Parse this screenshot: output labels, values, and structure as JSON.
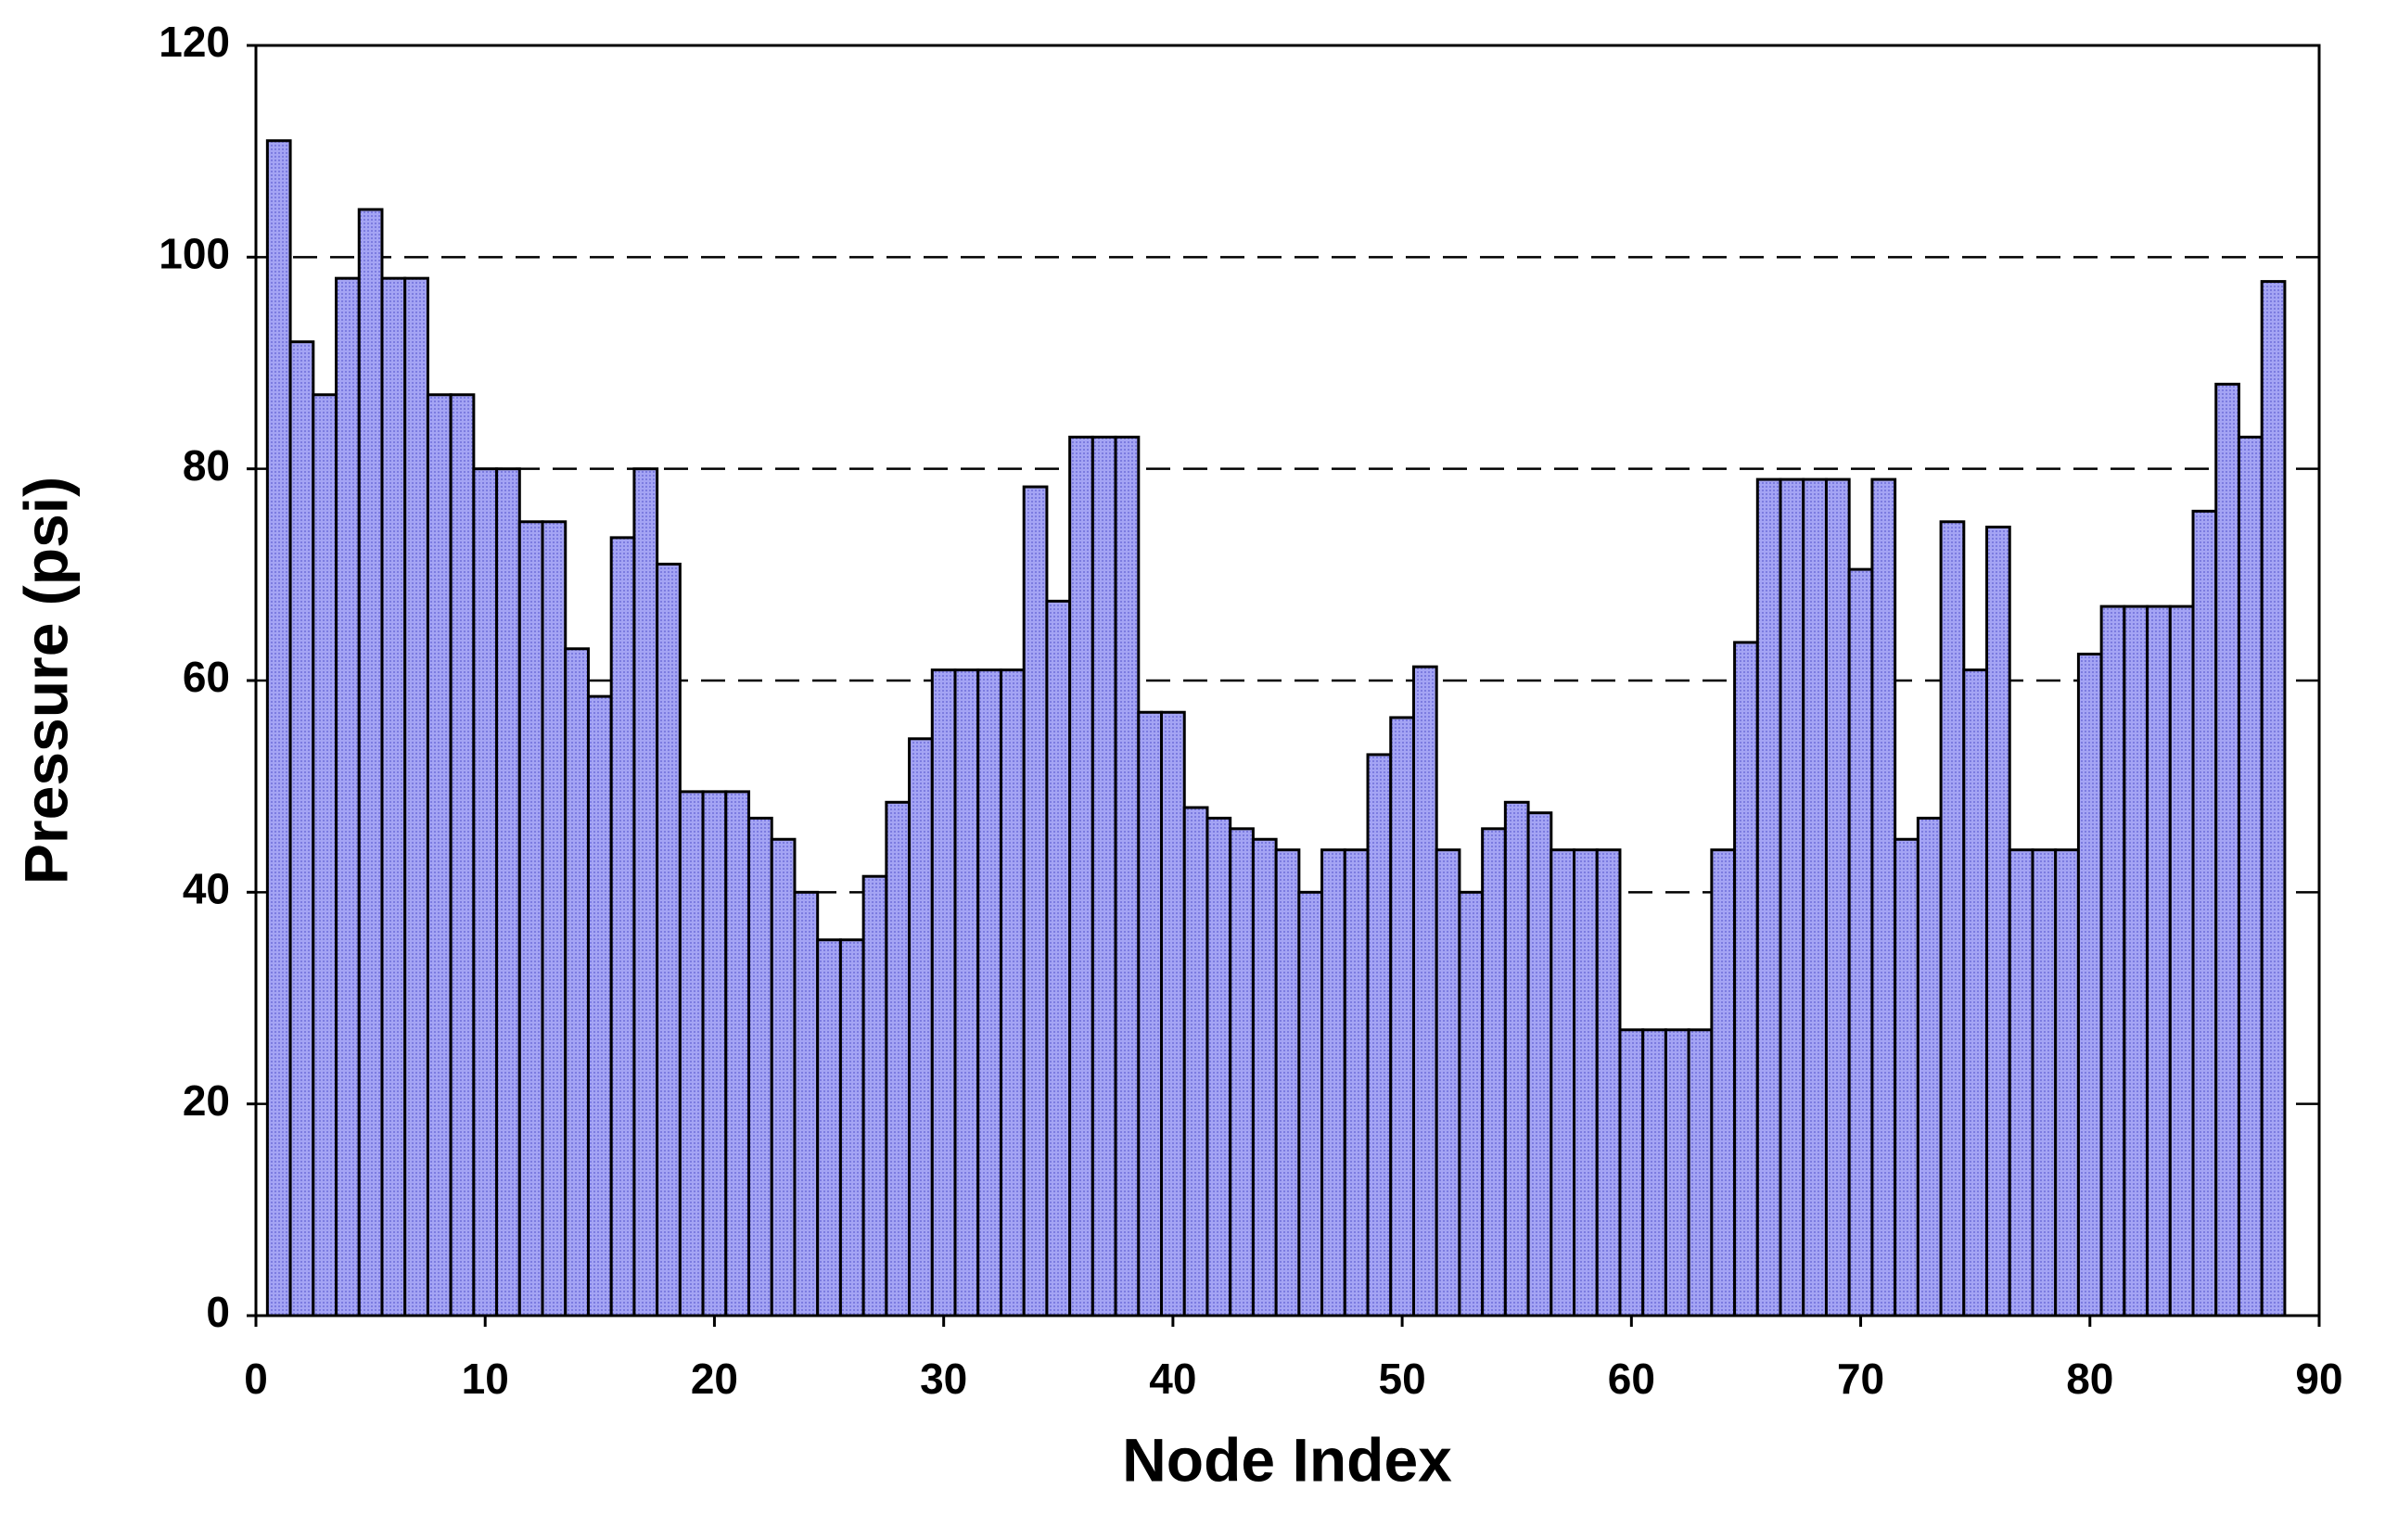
{
  "chart_data": {
    "type": "bar",
    "x_label": "Node Index",
    "y_label": "Pressure (psi)",
    "x": [
      1,
      2,
      3,
      4,
      5,
      6,
      7,
      8,
      9,
      10,
      11,
      12,
      13,
      14,
      15,
      16,
      17,
      18,
      19,
      20,
      21,
      22,
      23,
      24,
      25,
      26,
      27,
      28,
      29,
      30,
      31,
      32,
      33,
      34,
      35,
      36,
      37,
      38,
      39,
      40,
      41,
      42,
      43,
      44,
      45,
      46,
      47,
      48,
      49,
      50,
      51,
      52,
      53,
      54,
      55,
      56,
      57,
      58,
      59,
      60,
      61,
      62,
      63,
      64,
      65,
      66,
      67,
      68,
      69,
      70,
      71,
      72,
      73,
      74,
      75,
      76,
      77,
      78,
      79,
      80,
      81,
      82,
      83,
      84,
      85,
      86,
      87,
      88
    ],
    "values": [
      111,
      92,
      87,
      98,
      104.5,
      98,
      98,
      87,
      87,
      80,
      80,
      75,
      75,
      63,
      58.5,
      73.5,
      80,
      71,
      49.5,
      49.5,
      49.5,
      47,
      45,
      40,
      35.5,
      35.5,
      41.5,
      48.5,
      54.5,
      61,
      61,
      61,
      61,
      78.3,
      67.5,
      83,
      83,
      83,
      57,
      57,
      48,
      47,
      46,
      45,
      44,
      40,
      44,
      44,
      53,
      56.5,
      61.3,
      44,
      40,
      46,
      48.5,
      47.5,
      44,
      44,
      44,
      27,
      27,
      27,
      27,
      44,
      63.6,
      79,
      79,
      79,
      79,
      70.5,
      79,
      45,
      47,
      75,
      61,
      74.5,
      44,
      44,
      44,
      62.5,
      67,
      67,
      67,
      67,
      76,
      88,
      83,
      97.7
    ],
    "color": "#a4a4f4",
    "xlim": [
      0,
      90
    ],
    "xticks": [
      0,
      10,
      20,
      30,
      40,
      50,
      60,
      70,
      80,
      90
    ],
    "ylim": [
      0,
      120
    ],
    "yticks": [
      0,
      20,
      40,
      60,
      80,
      100,
      120
    ],
    "grid": true
  }
}
